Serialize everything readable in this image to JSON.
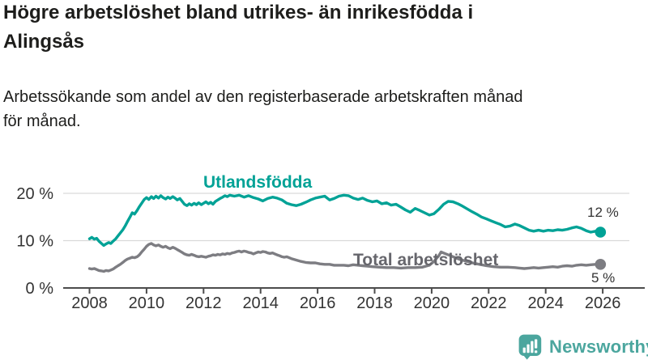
{
  "header": {
    "title_lines": [
      "Högre arbetslöshet bland utrikes- än inrikesfödda i",
      "Alingsås"
    ],
    "subtitle_lines": [
      "Arbetssökande som andel av den registerbaserade arbetskraften månad",
      "för månad."
    ]
  },
  "chart_data": {
    "type": "line",
    "title": "Högre arbetslöshet bland utrikes- än inrikesfödda i Alingsås",
    "subtitle": "Arbetssökande som andel av den registerbaserade arbetskraften månad för månad.",
    "unit": "%",
    "grid": "horizontal",
    "grid_color": "#d9d9d9",
    "axis_color": "#4c4c4c",
    "tick_label_color": "#333333",
    "x_axis": {
      "range": [
        2008,
        2026.3
      ],
      "ticks": [
        2008,
        2010,
        2012,
        2014,
        2016,
        2018,
        2020,
        2022,
        2024,
        2026
      ]
    },
    "y_axis": {
      "range": [
        0,
        22
      ],
      "ticks": [
        {
          "value": 0,
          "label": "0 %"
        },
        {
          "value": 10,
          "label": "10 %"
        },
        {
          "value": 20,
          "label": "20 %"
        }
      ]
    },
    "series": [
      {
        "name": "Total arbetslöshet",
        "color": "#7d7d82",
        "end_label": "5 %",
        "end_value": 5,
        "points": [
          [
            2008.0,
            4.1
          ],
          [
            2008.08,
            4.0
          ],
          [
            2008.17,
            4.1
          ],
          [
            2008.25,
            3.9
          ],
          [
            2008.33,
            3.7
          ],
          [
            2008.42,
            3.6
          ],
          [
            2008.5,
            3.5
          ],
          [
            2008.58,
            3.7
          ],
          [
            2008.67,
            3.6
          ],
          [
            2008.75,
            3.8
          ],
          [
            2008.83,
            4.0
          ],
          [
            2008.92,
            4.4
          ],
          [
            2009.0,
            4.7
          ],
          [
            2009.08,
            5.0
          ],
          [
            2009.17,
            5.4
          ],
          [
            2009.25,
            5.8
          ],
          [
            2009.33,
            6.1
          ],
          [
            2009.42,
            6.3
          ],
          [
            2009.5,
            6.5
          ],
          [
            2009.58,
            6.4
          ],
          [
            2009.67,
            6.6
          ],
          [
            2009.75,
            7.0
          ],
          [
            2009.83,
            7.6
          ],
          [
            2009.92,
            8.2
          ],
          [
            2010.0,
            8.8
          ],
          [
            2010.08,
            9.2
          ],
          [
            2010.17,
            9.4
          ],
          [
            2010.25,
            9.1
          ],
          [
            2010.33,
            8.9
          ],
          [
            2010.42,
            9.1
          ],
          [
            2010.5,
            8.8
          ],
          [
            2010.58,
            8.6
          ],
          [
            2010.67,
            8.8
          ],
          [
            2010.75,
            8.5
          ],
          [
            2010.83,
            8.3
          ],
          [
            2010.92,
            8.6
          ],
          [
            2011.0,
            8.4
          ],
          [
            2011.08,
            8.1
          ],
          [
            2011.17,
            7.8
          ],
          [
            2011.25,
            7.5
          ],
          [
            2011.33,
            7.2
          ],
          [
            2011.42,
            7.0
          ],
          [
            2011.5,
            6.9
          ],
          [
            2011.58,
            7.1
          ],
          [
            2011.67,
            6.9
          ],
          [
            2011.75,
            6.7
          ],
          [
            2011.83,
            6.6
          ],
          [
            2011.92,
            6.7
          ],
          [
            2012.0,
            6.6
          ],
          [
            2012.08,
            6.5
          ],
          [
            2012.17,
            6.7
          ],
          [
            2012.25,
            6.8
          ],
          [
            2012.33,
            7.0
          ],
          [
            2012.42,
            6.9
          ],
          [
            2012.5,
            7.1
          ],
          [
            2012.58,
            7.0
          ],
          [
            2012.67,
            7.2
          ],
          [
            2012.75,
            7.1
          ],
          [
            2012.83,
            7.3
          ],
          [
            2012.92,
            7.2
          ],
          [
            2013.0,
            7.4
          ],
          [
            2013.08,
            7.5
          ],
          [
            2013.17,
            7.7
          ],
          [
            2013.25,
            7.8
          ],
          [
            2013.33,
            7.6
          ],
          [
            2013.42,
            7.8
          ],
          [
            2013.5,
            7.7
          ],
          [
            2013.58,
            7.5
          ],
          [
            2013.67,
            7.4
          ],
          [
            2013.75,
            7.2
          ],
          [
            2013.83,
            7.4
          ],
          [
            2013.92,
            7.6
          ],
          [
            2014.0,
            7.5
          ],
          [
            2014.08,
            7.7
          ],
          [
            2014.17,
            7.6
          ],
          [
            2014.25,
            7.4
          ],
          [
            2014.33,
            7.3
          ],
          [
            2014.42,
            7.4
          ],
          [
            2014.5,
            7.2
          ],
          [
            2014.58,
            7.0
          ],
          [
            2014.67,
            6.8
          ],
          [
            2014.75,
            6.6
          ],
          [
            2014.83,
            6.5
          ],
          [
            2014.92,
            6.6
          ],
          [
            2015.08,
            6.2
          ],
          [
            2015.25,
            5.9
          ],
          [
            2015.42,
            5.6
          ],
          [
            2015.58,
            5.4
          ],
          [
            2015.75,
            5.3
          ],
          [
            2015.92,
            5.3
          ],
          [
            2016.08,
            5.1
          ],
          [
            2016.25,
            5.0
          ],
          [
            2016.42,
            5.0
          ],
          [
            2016.58,
            4.8
          ],
          [
            2016.75,
            4.8
          ],
          [
            2016.92,
            4.8
          ],
          [
            2017.08,
            4.7
          ],
          [
            2017.25,
            4.9
          ],
          [
            2017.42,
            4.8
          ],
          [
            2017.58,
            4.7
          ],
          [
            2017.75,
            4.6
          ],
          [
            2017.92,
            4.5
          ],
          [
            2018.17,
            4.4
          ],
          [
            2018.42,
            4.3
          ],
          [
            2018.67,
            4.3
          ],
          [
            2018.92,
            4.2
          ],
          [
            2019.17,
            4.3
          ],
          [
            2019.42,
            4.3
          ],
          [
            2019.67,
            4.4
          ],
          [
            2019.92,
            4.8
          ],
          [
            2020.08,
            5.6
          ],
          [
            2020.25,
            6.8
          ],
          [
            2020.33,
            7.6
          ],
          [
            2020.5,
            7.2
          ],
          [
            2020.67,
            6.8
          ],
          [
            2020.83,
            6.4
          ],
          [
            2021.0,
            6.0
          ],
          [
            2021.25,
            5.6
          ],
          [
            2021.5,
            5.2
          ],
          [
            2021.75,
            4.9
          ],
          [
            2021.92,
            4.7
          ],
          [
            2022.17,
            4.5
          ],
          [
            2022.42,
            4.4
          ],
          [
            2022.67,
            4.4
          ],
          [
            2022.92,
            4.3
          ],
          [
            2023.08,
            4.2
          ],
          [
            2023.25,
            4.1
          ],
          [
            2023.42,
            4.2
          ],
          [
            2023.58,
            4.3
          ],
          [
            2023.75,
            4.2
          ],
          [
            2023.92,
            4.3
          ],
          [
            2024.08,
            4.4
          ],
          [
            2024.25,
            4.5
          ],
          [
            2024.42,
            4.4
          ],
          [
            2024.58,
            4.6
          ],
          [
            2024.75,
            4.7
          ],
          [
            2024.92,
            4.6
          ],
          [
            2025.08,
            4.8
          ],
          [
            2025.25,
            4.9
          ],
          [
            2025.42,
            4.8
          ],
          [
            2025.58,
            4.9
          ],
          [
            2025.75,
            5.0
          ],
          [
            2025.92,
            5.0
          ]
        ]
      },
      {
        "name": "Utlandsfödda",
        "color": "#00a296",
        "end_label": "12 %",
        "end_value": 12,
        "points": [
          [
            2008.0,
            10.4
          ],
          [
            2008.08,
            10.7
          ],
          [
            2008.17,
            10.3
          ],
          [
            2008.25,
            10.5
          ],
          [
            2008.33,
            9.9
          ],
          [
            2008.42,
            9.4
          ],
          [
            2008.5,
            9.0
          ],
          [
            2008.58,
            9.3
          ],
          [
            2008.67,
            9.6
          ],
          [
            2008.75,
            9.4
          ],
          [
            2008.83,
            9.9
          ],
          [
            2008.92,
            10.4
          ],
          [
            2009.0,
            11.0
          ],
          [
            2009.08,
            11.6
          ],
          [
            2009.17,
            12.3
          ],
          [
            2009.25,
            13.1
          ],
          [
            2009.33,
            14.0
          ],
          [
            2009.42,
            15.0
          ],
          [
            2009.5,
            15.9
          ],
          [
            2009.58,
            15.6
          ],
          [
            2009.67,
            16.4
          ],
          [
            2009.75,
            17.2
          ],
          [
            2009.83,
            17.9
          ],
          [
            2009.92,
            18.7
          ],
          [
            2010.0,
            19.1
          ],
          [
            2010.08,
            18.7
          ],
          [
            2010.17,
            19.3
          ],
          [
            2010.25,
            18.9
          ],
          [
            2010.33,
            19.4
          ],
          [
            2010.42,
            19.0
          ],
          [
            2010.5,
            19.5
          ],
          [
            2010.58,
            19.1
          ],
          [
            2010.67,
            18.8
          ],
          [
            2010.75,
            19.2
          ],
          [
            2010.83,
            18.9
          ],
          [
            2010.92,
            19.3
          ],
          [
            2011.0,
            19.0
          ],
          [
            2011.08,
            18.6
          ],
          [
            2011.17,
            18.9
          ],
          [
            2011.25,
            18.3
          ],
          [
            2011.33,
            17.7
          ],
          [
            2011.42,
            17.4
          ],
          [
            2011.5,
            17.8
          ],
          [
            2011.58,
            17.5
          ],
          [
            2011.67,
            17.9
          ],
          [
            2011.75,
            17.6
          ],
          [
            2011.83,
            18.0
          ],
          [
            2011.92,
            17.6
          ],
          [
            2012.0,
            17.9
          ],
          [
            2012.08,
            18.2
          ],
          [
            2012.17,
            17.8
          ],
          [
            2012.25,
            18.1
          ],
          [
            2012.33,
            17.7
          ],
          [
            2012.42,
            18.3
          ],
          [
            2012.5,
            18.6
          ],
          [
            2012.58,
            18.9
          ],
          [
            2012.67,
            19.2
          ],
          [
            2012.75,
            19.5
          ],
          [
            2012.83,
            19.3
          ],
          [
            2012.92,
            19.6
          ],
          [
            2013.08,
            19.4
          ],
          [
            2013.25,
            19.6
          ],
          [
            2013.42,
            19.2
          ],
          [
            2013.58,
            19.5
          ],
          [
            2013.75,
            19.1
          ],
          [
            2013.92,
            18.8
          ],
          [
            2014.08,
            18.4
          ],
          [
            2014.25,
            18.9
          ],
          [
            2014.42,
            19.2
          ],
          [
            2014.58,
            19.0
          ],
          [
            2014.75,
            18.6
          ],
          [
            2014.92,
            17.9
          ],
          [
            2015.08,
            17.6
          ],
          [
            2015.25,
            17.4
          ],
          [
            2015.42,
            17.7
          ],
          [
            2015.58,
            18.1
          ],
          [
            2015.75,
            18.6
          ],
          [
            2015.92,
            19.0
          ],
          [
            2016.08,
            19.2
          ],
          [
            2016.25,
            19.4
          ],
          [
            2016.42,
            18.6
          ],
          [
            2016.58,
            18.9
          ],
          [
            2016.75,
            19.4
          ],
          [
            2016.92,
            19.6
          ],
          [
            2017.08,
            19.5
          ],
          [
            2017.25,
            19.0
          ],
          [
            2017.42,
            18.7
          ],
          [
            2017.58,
            19.0
          ],
          [
            2017.75,
            18.5
          ],
          [
            2017.92,
            18.2
          ],
          [
            2018.08,
            18.4
          ],
          [
            2018.25,
            17.8
          ],
          [
            2018.42,
            18.0
          ],
          [
            2018.58,
            17.5
          ],
          [
            2018.75,
            17.7
          ],
          [
            2018.92,
            17.1
          ],
          [
            2019.08,
            16.5
          ],
          [
            2019.25,
            16.0
          ],
          [
            2019.42,
            16.8
          ],
          [
            2019.58,
            16.4
          ],
          [
            2019.75,
            15.9
          ],
          [
            2019.92,
            15.4
          ],
          [
            2020.08,
            15.7
          ],
          [
            2020.25,
            16.6
          ],
          [
            2020.42,
            17.7
          ],
          [
            2020.58,
            18.3
          ],
          [
            2020.75,
            18.2
          ],
          [
            2020.92,
            17.8
          ],
          [
            2021.08,
            17.3
          ],
          [
            2021.25,
            16.7
          ],
          [
            2021.42,
            16.1
          ],
          [
            2021.58,
            15.6
          ],
          [
            2021.75,
            15.0
          ],
          [
            2021.92,
            14.6
          ],
          [
            2022.08,
            14.2
          ],
          [
            2022.25,
            13.8
          ],
          [
            2022.42,
            13.4
          ],
          [
            2022.58,
            12.9
          ],
          [
            2022.75,
            13.1
          ],
          [
            2022.92,
            13.5
          ],
          [
            2023.08,
            13.2
          ],
          [
            2023.25,
            12.7
          ],
          [
            2023.42,
            12.2
          ],
          [
            2023.58,
            12.0
          ],
          [
            2023.75,
            12.2
          ],
          [
            2023.92,
            12.0
          ],
          [
            2024.08,
            12.2
          ],
          [
            2024.25,
            12.1
          ],
          [
            2024.42,
            12.3
          ],
          [
            2024.58,
            12.2
          ],
          [
            2024.75,
            12.4
          ],
          [
            2024.92,
            12.7
          ],
          [
            2025.08,
            12.9
          ],
          [
            2025.25,
            12.6
          ],
          [
            2025.42,
            12.1
          ],
          [
            2025.58,
            11.8
          ],
          [
            2025.75,
            12.0
          ],
          [
            2025.92,
            11.8
          ]
        ]
      }
    ]
  },
  "branding": {
    "logo_text": "Newsworthy",
    "logo_color": "#4ba69e",
    "logo_icon": "bar-chart-speech-bubble-icon"
  }
}
